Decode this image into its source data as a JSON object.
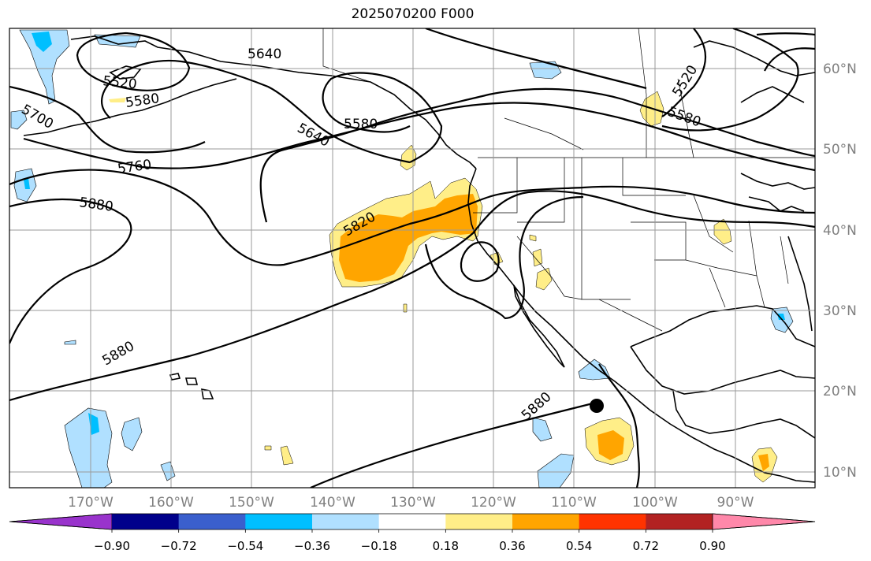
{
  "title": "2025070200 F000",
  "lon_labels": [
    "170°W",
    "160°W",
    "150°W",
    "140°W",
    "130°W",
    "120°W",
    "110°W",
    "100°W",
    "90°W"
  ],
  "lat_labels": [
    "10°N",
    "20°N",
    "30°N",
    "40°N",
    "50°N",
    "60°N"
  ],
  "contour_labels": [
    "5520",
    "5580",
    "5640",
    "5700",
    "5760",
    "5820",
    "5880"
  ],
  "colorbar": {
    "ticks": [
      "−0.90",
      "−0.72",
      "−0.54",
      "−0.36",
      "−0.18",
      "0.18",
      "0.36",
      "0.54",
      "0.72",
      "0.90"
    ],
    "colors": [
      "#9933cc",
      "#00008b",
      "#3a5fcd",
      "#00bfff",
      "#b0e0ff",
      "#ffffff",
      "#ffee88",
      "#ffa500",
      "#ff3300",
      "#b22222",
      "#ff88aa"
    ]
  }
}
